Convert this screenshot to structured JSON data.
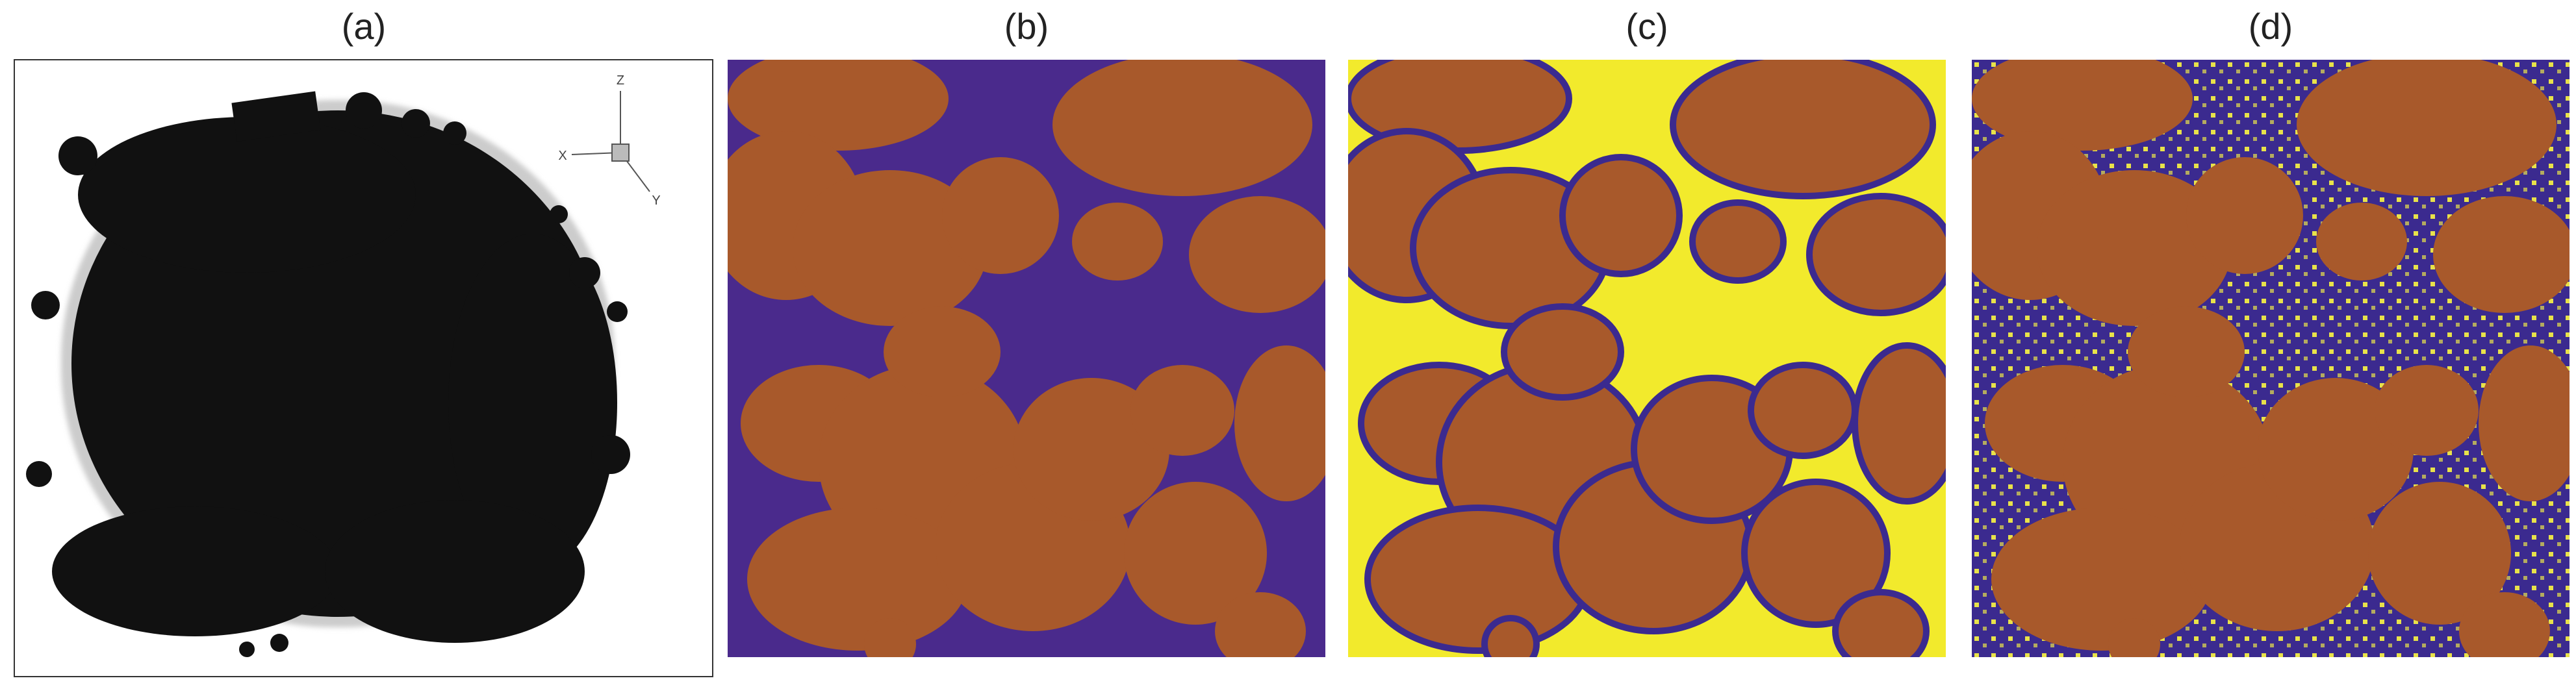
{
  "panels": [
    {
      "label": "(a)"
    },
    {
      "label": "(b)"
    },
    {
      "label": "(c)"
    },
    {
      "label": "(d)"
    }
  ],
  "axes_triad": {
    "z": "Z",
    "x": "X",
    "y": "Y"
  }
}
